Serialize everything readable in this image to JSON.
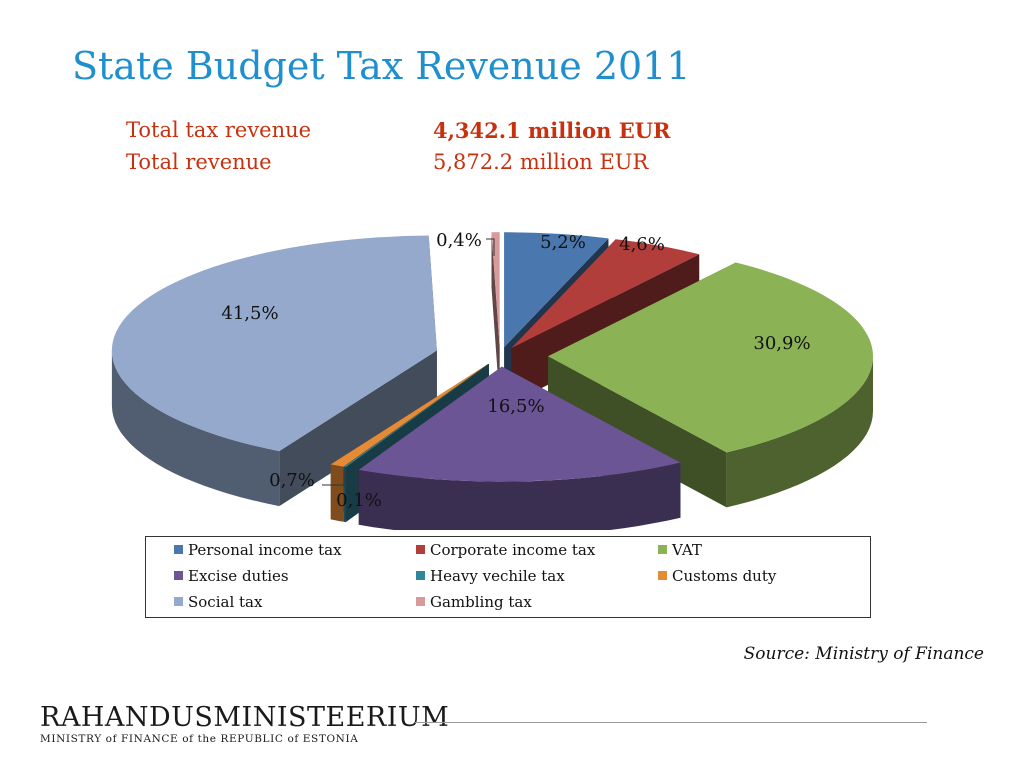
{
  "title": "State Budget Tax Revenue 2011",
  "totals": [
    {
      "label": "Total tax revenue",
      "value": "4,342.1 million EUR"
    },
    {
      "label": "Total revenue",
      "value": "5,872.2 million EUR"
    }
  ],
  "source": "Source: Ministry of Finance",
  "logo": {
    "main": "RAHANDUSMINISTEERIUM",
    "sub": "MINISTRY of FINANCE of the REPUBLIC of ESTONIA"
  },
  "colors": {
    "title": "#1f8fcf",
    "totals": "#c8310f"
  },
  "chart_data": {
    "type": "pie",
    "style": "3d-exploded",
    "legend_position": "bottom",
    "series": [
      {
        "name": "Personal income tax",
        "value": 5.2,
        "label": "5,2%",
        "color": "#4a77ad"
      },
      {
        "name": "Corporate income tax",
        "value": 4.6,
        "label": "4,6%",
        "color": "#b23e3b"
      },
      {
        "name": "VAT",
        "value": 30.9,
        "label": "30,9%",
        "color": "#8cb256"
      },
      {
        "name": "Excise duties",
        "value": 16.5,
        "label": "16,5%",
        "color": "#6c5594"
      },
      {
        "name": "Heavy vechile tax",
        "value": 0.1,
        "label": "0,1%",
        "color": "#32869a"
      },
      {
        "name": "Customs duty",
        "value": 0.7,
        "label": "0,7%",
        "color": "#e58a35"
      },
      {
        "name": "Social tax",
        "value": 41.5,
        "label": "41,5%",
        "color": "#94a9cb"
      },
      {
        "name": "Gambling tax",
        "value": 0.4,
        "label": "0,4%",
        "color": "#d89b9b"
      }
    ]
  }
}
